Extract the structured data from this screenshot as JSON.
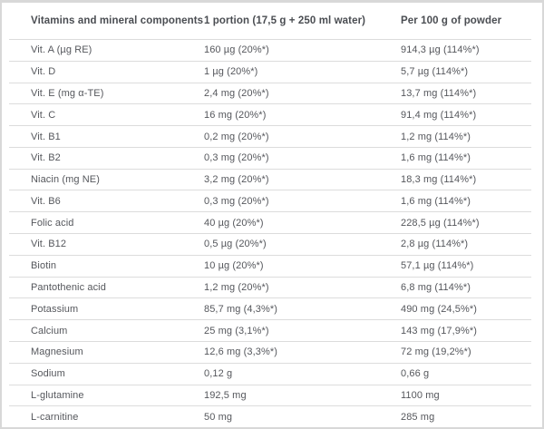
{
  "table": {
    "columns": [
      {
        "label": "Vitamins and mineral components"
      },
      {
        "label": "1 portion (17,5 g + 250 ml water)"
      },
      {
        "label": "Per 100 g of powder"
      }
    ],
    "rows": [
      {
        "component": "Vit. A (µg RE)",
        "portion": "160 µg (20%*)",
        "per100g": "914,3 µg (114%*)"
      },
      {
        "component": "Vit. D",
        "portion": "1 µg (20%*)",
        "per100g": "5,7 µg (114%*)"
      },
      {
        "component": "Vit. E (mg α-TE)",
        "portion": "2,4 mg (20%*)",
        "per100g": "13,7 mg (114%*)"
      },
      {
        "component": "Vit. C",
        "portion": "16 mg (20%*)",
        "per100g": "91,4 mg (114%*)"
      },
      {
        "component": "Vit. B1",
        "portion": "0,2 mg (20%*)",
        "per100g": "1,2 mg (114%*)"
      },
      {
        "component": "Vit. B2",
        "portion": "0,3 mg (20%*)",
        "per100g": "1,6 mg (114%*)"
      },
      {
        "component": "Niacin (mg NE)",
        "portion": "3,2 mg (20%*)",
        "per100g": "18,3 mg (114%*)"
      },
      {
        "component": "Vit. B6",
        "portion": "0,3 mg (20%*)",
        "per100g": "1,6 mg (114%*)"
      },
      {
        "component": "Folic acid",
        "portion": "40 µg (20%*)",
        "per100g": "228,5 µg (114%*)"
      },
      {
        "component": "Vit. B12",
        "portion": "0,5 µg (20%*)",
        "per100g": "2,8 µg (114%*)"
      },
      {
        "component": "Biotin",
        "portion": "10 µg (20%*)",
        "per100g": "57,1 µg (114%*)"
      },
      {
        "component": "Pantothenic acid",
        "portion": "1,2 mg (20%*)",
        "per100g": "6,8 mg (114%*)"
      },
      {
        "component": "Potassium",
        "portion": "85,7 mg (4,3%*)",
        "per100g": "490 mg (24,5%*)"
      },
      {
        "component": "Calcium",
        "portion": "25 mg (3,1%*)",
        "per100g": "143 mg (17,9%*)"
      },
      {
        "component": "Magnesium",
        "portion": "12,6 mg (3,3%*)",
        "per100g": "72 mg (19,2%*)"
      },
      {
        "component": "Sodium",
        "portion": "0,12 g",
        "per100g": "0,66 g"
      },
      {
        "component": "L-glutamine",
        "portion": "192,5 mg",
        "per100g": "1100 mg"
      },
      {
        "component": "L-carnitine",
        "portion": "50 mg",
        "per100g": "285 mg"
      }
    ]
  },
  "colors": {
    "background": "#ffffff",
    "outer_border": "#d8d8d8",
    "row_divider": "#dcdcdc",
    "header_text": "#4a4d52",
    "body_text": "#55575c"
  },
  "chart_data": {
    "type": "table",
    "title": "Vitamins and mineral components",
    "columns": [
      "Vitamins and mineral components",
      "1 portion (17,5 g + 250 ml water)",
      "Per 100 g of powder"
    ],
    "rows": [
      [
        "Vit. A (µg RE)",
        "160 µg (20%*)",
        "914,3 µg (114%*)"
      ],
      [
        "Vit. D",
        "1 µg (20%*)",
        "5,7 µg (114%*)"
      ],
      [
        "Vit. E (mg α-TE)",
        "2,4 mg (20%*)",
        "13,7 mg (114%*)"
      ],
      [
        "Vit. C",
        "16 mg (20%*)",
        "91,4 mg (114%*)"
      ],
      [
        "Vit. B1",
        "0,2 mg (20%*)",
        "1,2 mg (114%*)"
      ],
      [
        "Vit. B2",
        "0,3 mg (20%*)",
        "1,6 mg (114%*)"
      ],
      [
        "Niacin (mg NE)",
        "3,2 mg (20%*)",
        "18,3 mg (114%*)"
      ],
      [
        "Vit. B6",
        "0,3 mg (20%*)",
        "1,6 mg (114%*)"
      ],
      [
        "Folic acid",
        "40 µg (20%*)",
        "228,5 µg (114%*)"
      ],
      [
        "Vit. B12",
        "0,5 µg (20%*)",
        "2,8 µg (114%*)"
      ],
      [
        "Biotin",
        "10 µg (20%*)",
        "57,1 µg (114%*)"
      ],
      [
        "Pantothenic acid",
        "1,2 mg (20%*)",
        "6,8 mg (114%*)"
      ],
      [
        "Potassium",
        "85,7 mg (4,3%*)",
        "490 mg (24,5%*)"
      ],
      [
        "Calcium",
        "25 mg (3,1%*)",
        "143 mg (17,9%*)"
      ],
      [
        "Magnesium",
        "12,6 mg (3,3%*)",
        "72 mg (19,2%*)"
      ],
      [
        "Sodium",
        "0,12 g",
        "0,66 g"
      ],
      [
        "L-glutamine",
        "192,5 mg",
        "1100 mg"
      ],
      [
        "L-carnitine",
        "50 mg",
        "285 mg"
      ]
    ]
  }
}
